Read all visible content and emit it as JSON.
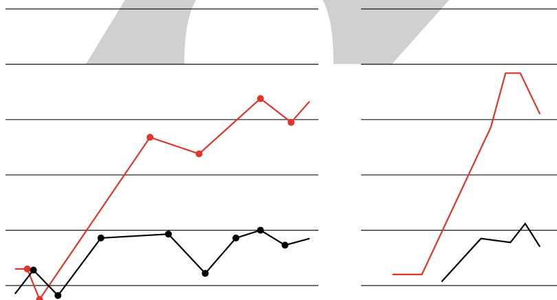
{
  "colors": {
    "background": "#ffffff",
    "gridline": "#1a1a1a",
    "red": "#e0352b",
    "black": "#000000",
    "watermark": "#cfd0d1"
  },
  "chart_data": [
    {
      "type": "line",
      "grid": true,
      "legend": "none",
      "ylim": [
        0,
        5
      ],
      "xlim": [
        0,
        13
      ],
      "series": [
        {
          "color": "#e0352b",
          "markers": true,
          "x": [
            0.5,
            1,
            1.5,
            6,
            8,
            10.5,
            11.75,
            12.5
          ],
          "y": [
            0.3,
            0.3,
            -0.25,
            2.68,
            2.38,
            3.38,
            2.95,
            3.33
          ]
        },
        {
          "color": "#000000",
          "markers": true,
          "x": [
            0.5,
            1.25,
            2.25,
            4,
            6.75,
            8.25,
            9.5,
            10.5,
            11.5,
            12.5
          ],
          "y": [
            -0.15,
            0.28,
            -0.18,
            0.86,
            0.93,
            0.22,
            0.86,
            1.0,
            0.73,
            0.85
          ]
        }
      ]
    },
    {
      "type": "line",
      "grid": true,
      "legend": "none",
      "ylim": [
        0,
        5
      ],
      "xlim": [
        0,
        13
      ],
      "series": [
        {
          "color": "#e0352b",
          "markers": false,
          "x": [
            1,
            2.5,
            6,
            6.75,
            7.5,
            8.5
          ],
          "y": [
            0.2,
            0.2,
            2.86,
            3.84,
            3.84,
            3.1
          ]
        },
        {
          "color": "#000000",
          "markers": false,
          "x": [
            3.5,
            5.5,
            7,
            7.75,
            8.5
          ],
          "y": [
            0.07,
            0.85,
            0.78,
            1.12,
            0.7
          ]
        }
      ]
    }
  ]
}
